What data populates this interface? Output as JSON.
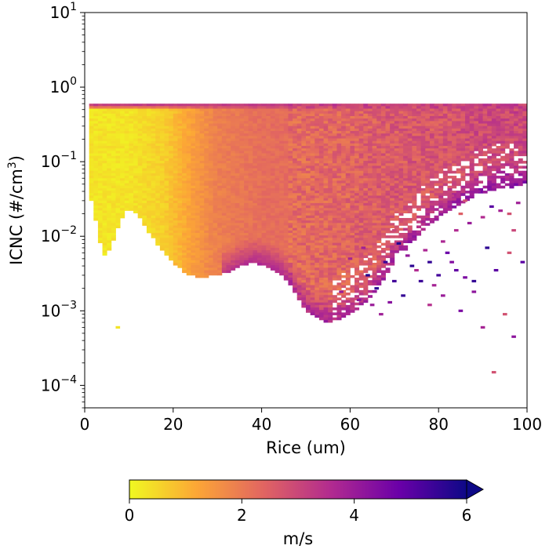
{
  "chart_data": {
    "type": "heatmap",
    "title": "",
    "xlabel": "Rice (um)",
    "ylabel": {
      "base": "ICNC (#/cm",
      "sup": "3",
      "tail": ")"
    },
    "x_ticks": [
      "0",
      "20",
      "40",
      "60",
      "80",
      "100"
    ],
    "x_tick_values": [
      0,
      20,
      40,
      60,
      80,
      100
    ],
    "y_ticks": [
      {
        "base": "10",
        "exp": "1",
        "value": 1
      },
      {
        "base": "10",
        "exp": "0",
        "value": 0
      },
      {
        "base": "10",
        "exp": "−1",
        "value": -1
      },
      {
        "base": "10",
        "exp": "−2",
        "value": -2
      },
      {
        "base": "10",
        "exp": "−3",
        "value": -3
      },
      {
        "base": "10",
        "exp": "−4",
        "value": -4
      }
    ],
    "xlim": [
      0,
      100
    ],
    "ylim": [
      5e-05,
      10
    ],
    "yscale": "log",
    "grid": false,
    "colormap": "plasma_r",
    "colorbar": {
      "label": "m/s",
      "ticks": [
        "0",
        "2",
        "4",
        "6"
      ],
      "tick_values": [
        0,
        2,
        4,
        6
      ],
      "range": [
        0,
        6
      ],
      "extend": "max",
      "orientation": "horizontal",
      "stops": [
        "#f0f921",
        "#fca636",
        "#e16462",
        "#b12a90",
        "#6a00a8",
        "#0d0887"
      ]
    },
    "bin_width_um": 1,
    "bins_per_decade": 30,
    "upper_envelope": [
      [
        1,
        0.6
      ],
      [
        100,
        0.6
      ]
    ],
    "lower_envelope": [
      [
        1,
        0.037
      ],
      [
        2,
        0.025
      ],
      [
        3,
        0.012
      ],
      [
        4,
        0.006
      ],
      [
        5,
        0.0058
      ],
      [
        6,
        0.0075
      ],
      [
        7,
        0.011
      ],
      [
        8,
        0.017
      ],
      [
        9,
        0.021
      ],
      [
        10,
        0.024
      ],
      [
        12,
        0.02
      ],
      [
        14,
        0.013
      ],
      [
        16,
        0.009
      ],
      [
        18,
        0.006
      ],
      [
        20,
        0.0045
      ],
      [
        22,
        0.0036
      ],
      [
        24,
        0.0031
      ],
      [
        26,
        0.0029
      ],
      [
        28,
        0.003
      ],
      [
        30,
        0.0031
      ],
      [
        32,
        0.0033
      ],
      [
        34,
        0.0038
      ],
      [
        36,
        0.0043
      ],
      [
        38,
        0.0046
      ],
      [
        40,
        0.0043
      ],
      [
        42,
        0.0038
      ],
      [
        44,
        0.0033
      ],
      [
        46,
        0.0025
      ],
      [
        48,
        0.0016
      ],
      [
        50,
        0.00105
      ],
      [
        52,
        0.00085
      ],
      [
        54,
        0.00075
      ],
      [
        56,
        0.00075
      ],
      [
        58,
        0.0008
      ],
      [
        60,
        0.00095
      ],
      [
        62,
        0.0011
      ],
      [
        64,
        0.0014
      ],
      [
        66,
        0.002
      ],
      [
        68,
        0.003
      ],
      [
        70,
        0.005
      ],
      [
        74,
        0.0085
      ],
      [
        78,
        0.015
      ],
      [
        82,
        0.022
      ],
      [
        86,
        0.03
      ],
      [
        90,
        0.04
      ],
      [
        94,
        0.046
      ],
      [
        100,
        0.05
      ]
    ],
    "value_by_x": [
      [
        1,
        0.3
      ],
      [
        10,
        0.3
      ],
      [
        18,
        0.6
      ],
      [
        24,
        1.3
      ],
      [
        30,
        1.9
      ],
      [
        40,
        2.2
      ],
      [
        50,
        2.3
      ],
      [
        60,
        2.4
      ],
      [
        70,
        2.6
      ],
      [
        80,
        2.7
      ],
      [
        90,
        2.9
      ],
      [
        100,
        3.0
      ]
    ],
    "top_band_value": 3.2,
    "isolated_cells": [
      [
        7.5,
        0.0006,
        0.3
      ],
      [
        92.5,
        0.00015,
        2.8
      ],
      [
        85,
        0.001,
        4.5
      ],
      [
        90,
        0.0006,
        3.8
      ],
      [
        97,
        0.00045,
        4.2
      ],
      [
        78,
        0.0012,
        3.5
      ],
      [
        95,
        0.0009,
        2.8
      ],
      [
        88,
        0.0025,
        5.5
      ],
      [
        93,
        0.0035,
        5.0
      ],
      [
        99,
        0.0045,
        5.0
      ],
      [
        96,
        0.006,
        2.8
      ],
      [
        91,
        0.007,
        5.6
      ],
      [
        97,
        0.012,
        3.0
      ],
      [
        96,
        0.02,
        2.8
      ],
      [
        92,
        0.025,
        5.0
      ],
      [
        86,
        0.03,
        2.8
      ],
      [
        89,
        0.04,
        4.0
      ],
      [
        83,
        0.035,
        3.2
      ],
      [
        85,
        0.02,
        2.5
      ],
      [
        70,
        0.012,
        3.0
      ]
    ],
    "scatter_cells": [
      [
        64,
        0.003,
        5.7
      ],
      [
        66,
        0.002,
        5.6
      ],
      [
        68,
        0.0045,
        5.4
      ],
      [
        70,
        0.0025,
        5.3
      ],
      [
        71,
        0.008,
        5.7
      ],
      [
        72,
        0.0016,
        5.5
      ],
      [
        74,
        0.004,
        5.6
      ],
      [
        76,
        0.0025,
        5.4
      ],
      [
        78,
        0.0045,
        5.5
      ],
      [
        80,
        0.003,
        5.3
      ],
      [
        82,
        0.006,
        4.8
      ],
      [
        84,
        0.0035,
        4.9
      ],
      [
        62,
        0.0014,
        4.2
      ],
      [
        65,
        0.0012,
        4.0
      ],
      [
        67,
        0.0009,
        3.9
      ],
      [
        69,
        0.0013,
        4.3
      ],
      [
        58,
        0.0018,
        4.0
      ],
      [
        60,
        0.005,
        3.8
      ],
      [
        63,
        0.007,
        3.9
      ],
      [
        73,
        0.0055,
        4.1
      ],
      [
        75,
        0.0035,
        3.6
      ],
      [
        79,
        0.0022,
        3.8
      ],
      [
        81,
        0.0016,
        4.0
      ],
      [
        77,
        0.0065,
        3.7
      ],
      [
        83,
        0.0045,
        4.4
      ],
      [
        86,
        0.0028,
        4.5
      ],
      [
        88,
        0.0018,
        4.2
      ],
      [
        81,
        0.0085,
        3.7
      ],
      [
        84,
        0.012,
        3.6
      ],
      [
        87,
        0.015,
        4.0
      ],
      [
        90,
        0.018,
        3.6
      ],
      [
        94,
        0.022,
        3.8
      ],
      [
        98,
        0.028,
        3.9
      ]
    ]
  }
}
